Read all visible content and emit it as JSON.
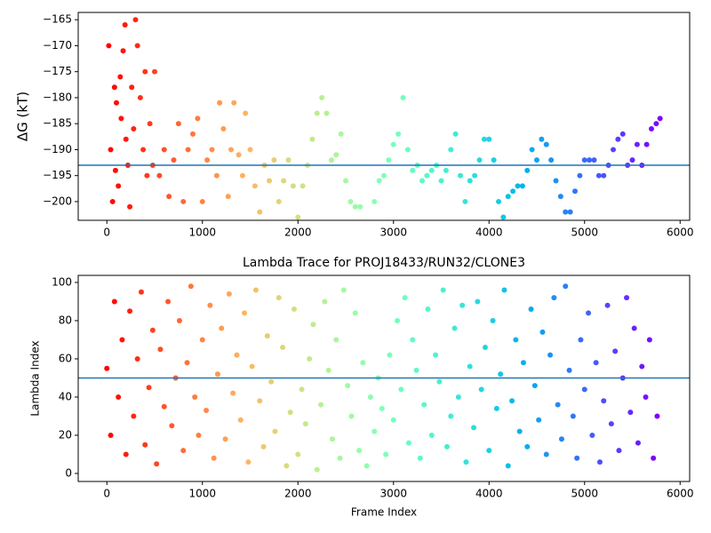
{
  "chart_data": [
    {
      "type": "scatter",
      "ylabel": "ΔG (kT)",
      "colormap": "rainbow_r",
      "hline": -193,
      "hline_color": "#1f77b4",
      "xlim": [
        -300,
        6100
      ],
      "xticks": [
        0,
        1000,
        2000,
        3000,
        4000,
        5000,
        6000
      ],
      "ylim": [
        -203.6,
        -163.6
      ],
      "yticks": [
        {
          "value": -200,
          "label": "−200"
        },
        {
          "value": -195,
          "label": "−195"
        },
        {
          "value": -190,
          "label": "−190"
        },
        {
          "value": -185,
          "label": "−185"
        },
        {
          "value": -180,
          "label": "−180"
        },
        {
          "value": -175,
          "label": "−175"
        },
        {
          "value": -170,
          "label": "−170"
        },
        {
          "value": -165,
          "label": "−165"
        }
      ],
      "x": [
        20,
        40,
        60,
        80,
        90,
        100,
        120,
        140,
        150,
        170,
        190,
        200,
        220,
        240,
        260,
        280,
        300,
        320,
        350,
        380,
        400,
        420,
        450,
        480,
        500,
        550,
        600,
        650,
        700,
        750,
        800,
        850,
        900,
        950,
        1000,
        1050,
        1100,
        1150,
        1180,
        1220,
        1270,
        1300,
        1330,
        1380,
        1420,
        1450,
        1500,
        1550,
        1600,
        1650,
        1700,
        1750,
        1800,
        1850,
        1900,
        1950,
        2000,
        2050,
        2100,
        2150,
        2200,
        2250,
        2300,
        2350,
        2400,
        2450,
        2500,
        2550,
        2600,
        2650,
        2800,
        2850,
        2900,
        2950,
        3000,
        3050,
        3100,
        3150,
        3200,
        3250,
        3300,
        3350,
        3400,
        3450,
        3500,
        3550,
        3600,
        3650,
        3700,
        3750,
        3800,
        3850,
        3900,
        3950,
        4000,
        4050,
        4100,
        4150,
        4200,
        4250,
        4300,
        4350,
        4400,
        4450,
        4500,
        4550,
        4600,
        4650,
        4700,
        4750,
        4800,
        4850,
        4900,
        4950,
        5000,
        5050,
        5100,
        5150,
        5200,
        5250,
        5300,
        5350,
        5400,
        5450,
        5500,
        5550,
        5600,
        5650,
        5700,
        5750,
        5790
      ],
      "values": [
        -170,
        -190,
        -200,
        -178,
        -194,
        -181,
        -197,
        -176,
        -184,
        -171,
        -166,
        -188,
        -193,
        -201,
        -178,
        -186,
        -165,
        -170,
        -180,
        -190,
        -175,
        -195,
        -185,
        -193,
        -175,
        -195,
        -190,
        -199,
        -192,
        -185,
        -200,
        -190,
        -187,
        -184,
        -200,
        -192,
        -190,
        -195,
        -181,
        -186,
        -199,
        -190,
        -181,
        -191,
        -195,
        -183,
        -190,
        -197,
        -202,
        -193,
        -196,
        -192,
        -200,
        -196,
        -192,
        -197,
        -203,
        -197,
        -193,
        -188,
        -183,
        -180,
        -183,
        -192,
        -191,
        -187,
        -196,
        -200,
        -201,
        -201,
        -200,
        -196,
        -195,
        -192,
        -189,
        -187,
        -180,
        -190,
        -194,
        -193,
        -196,
        -195,
        -194,
        -193,
        -196,
        -194,
        -190,
        -187,
        -195,
        -200,
        -196,
        -195,
        -192,
        -188,
        -188,
        -192,
        -200,
        -203,
        -199,
        -198,
        -197,
        -197,
        -194,
        -190,
        -192,
        -188,
        -189,
        -192,
        -196,
        -199,
        -202,
        -202,
        -198,
        -195,
        -192,
        -192,
        -192,
        -195,
        -195,
        -193,
        -190,
        -188,
        -187,
        -193,
        -192,
        -189,
        -193,
        -189,
        -186,
        -185,
        -184
      ]
    },
    {
      "type": "scatter",
      "title": "Lambda Trace for PROJ18433/RUN32/CLONE3",
      "xlabel": "Frame Index",
      "ylabel": "Lambda Index",
      "colormap": "rainbow_r",
      "hline": 50,
      "hline_color": "#1f77b4",
      "xlim": [
        -300,
        6100
      ],
      "xticks": [
        0,
        1000,
        2000,
        3000,
        4000,
        5000,
        6000
      ],
      "ylim": [
        -4.2,
        103.7
      ],
      "yticks": [
        0,
        20,
        40,
        60,
        80,
        100
      ],
      "x": [
        0,
        40,
        80,
        120,
        160,
        200,
        240,
        280,
        320,
        360,
        400,
        440,
        480,
        520,
        560,
        600,
        640,
        680,
        720,
        760,
        800,
        840,
        880,
        920,
        960,
        1000,
        1040,
        1080,
        1120,
        1160,
        1200,
        1240,
        1280,
        1320,
        1360,
        1400,
        1440,
        1480,
        1520,
        1560,
        1600,
        1640,
        1680,
        1720,
        1760,
        1800,
        1840,
        1880,
        1920,
        1960,
        2000,
        2040,
        2080,
        2120,
        2160,
        2200,
        2240,
        2280,
        2320,
        2360,
        2400,
        2440,
        2480,
        2520,
        2560,
        2600,
        2640,
        2680,
        2720,
        2760,
        2800,
        2840,
        2880,
        2920,
        2960,
        3000,
        3040,
        3080,
        3120,
        3160,
        3200,
        3240,
        3280,
        3320,
        3360,
        3400,
        3440,
        3480,
        3520,
        3560,
        3600,
        3640,
        3680,
        3720,
        3760,
        3800,
        3840,
        3880,
        3920,
        3960,
        4000,
        4040,
        4080,
        4120,
        4160,
        4200,
        4240,
        4280,
        4320,
        4360,
        4400,
        4440,
        4480,
        4520,
        4560,
        4600,
        4640,
        4680,
        4720,
        4760,
        4800,
        4840,
        4880,
        4920,
        4960,
        5000,
        5040,
        5080,
        5120,
        5160,
        5200,
        5240,
        5280,
        5320,
        5360,
        5400,
        5440,
        5480,
        5520,
        5560,
        5600,
        5640,
        5680,
        5720,
        5760
      ],
      "values": [
        55,
        20,
        90,
        40,
        70,
        10,
        85,
        30,
        60,
        95,
        15,
        45,
        75,
        5,
        65,
        35,
        90,
        25,
        50,
        80,
        12,
        58,
        98,
        40,
        20,
        70,
        33,
        88,
        8,
        52,
        76,
        18,
        94,
        42,
        62,
        28,
        84,
        6,
        56,
        96,
        38,
        14,
        72,
        48,
        22,
        92,
        66,
        4,
        32,
        86,
        10,
        44,
        26,
        60,
        78,
        2,
        36,
        90,
        54,
        18,
        70,
        8,
        96,
        46,
        30,
        84,
        12,
        58,
        4,
        40,
        22,
        50,
        34,
        10,
        62,
        28,
        80,
        44,
        92,
        16,
        70,
        54,
        8,
        36,
        86,
        20,
        62,
        48,
        96,
        14,
        30,
        76,
        40,
        88,
        6,
        56,
        24,
        90,
        44,
        66,
        12,
        80,
        34,
        52,
        96,
        4,
        38,
        70,
        22,
        58,
        14,
        86,
        46,
        28,
        74,
        10,
        62,
        92,
        36,
        18,
        98,
        54,
        30,
        8,
        70,
        44,
        84,
        20,
        58,
        6,
        38,
        88,
        26,
        64,
        12,
        50,
        92,
        32,
        76,
        16,
        56,
        40,
        70,
        8,
        30
      ]
    }
  ]
}
